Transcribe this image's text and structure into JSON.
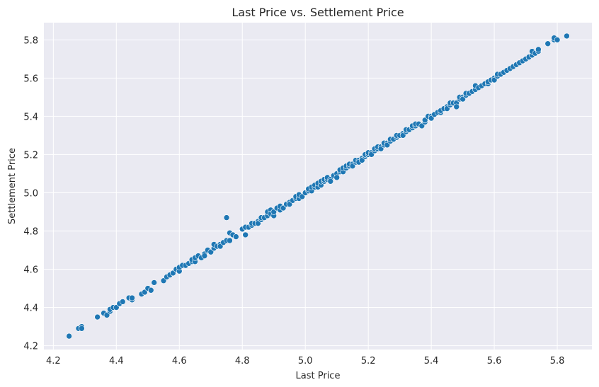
{
  "chart_data": {
    "type": "scatter",
    "title": "Last Price vs. Settlement Price",
    "xlabel": "Last Price",
    "ylabel": "Settlement Price",
    "xlim": [
      4.17,
      5.91
    ],
    "ylim": [
      4.18,
      5.89
    ],
    "x_ticks": [
      4.2,
      4.4,
      4.6,
      4.8,
      5.0,
      5.2,
      5.4,
      5.6,
      5.8
    ],
    "x_tick_labels": [
      "4.2",
      "4.4",
      "4.6",
      "4.8",
      "5.0",
      "5.2",
      "5.4",
      "5.6",
      "5.8"
    ],
    "y_ticks": [
      4.2,
      4.4,
      4.6,
      4.8,
      5.0,
      5.2,
      5.4,
      5.6,
      5.8
    ],
    "y_tick_labels": [
      "4.2",
      "4.4",
      "4.6",
      "4.8",
      "5.0",
      "5.2",
      "5.4",
      "5.6",
      "5.8"
    ],
    "grid": true,
    "background": "#eaeaf2",
    "marker_color": "#1f77b4",
    "points": [
      [
        4.25,
        4.25
      ],
      [
        4.28,
        4.29
      ],
      [
        4.29,
        4.3
      ],
      [
        4.29,
        4.29
      ],
      [
        4.34,
        4.35
      ],
      [
        4.36,
        4.37
      ],
      [
        4.37,
        4.36
      ],
      [
        4.38,
        4.38
      ],
      [
        4.38,
        4.39
      ],
      [
        4.39,
        4.4
      ],
      [
        4.4,
        4.4
      ],
      [
        4.41,
        4.42
      ],
      [
        4.42,
        4.43
      ],
      [
        4.44,
        4.45
      ],
      [
        4.45,
        4.44
      ],
      [
        4.45,
        4.45
      ],
      [
        4.48,
        4.47
      ],
      [
        4.49,
        4.48
      ],
      [
        4.5,
        4.5
      ],
      [
        4.51,
        4.49
      ],
      [
        4.52,
        4.53
      ],
      [
        4.55,
        4.54
      ],
      [
        4.56,
        4.56
      ],
      [
        4.57,
        4.57
      ],
      [
        4.58,
        4.58
      ],
      [
        4.59,
        4.6
      ],
      [
        4.6,
        4.59
      ],
      [
        4.6,
        4.61
      ],
      [
        4.61,
        4.62
      ],
      [
        4.62,
        4.62
      ],
      [
        4.63,
        4.63
      ],
      [
        4.64,
        4.64
      ],
      [
        4.64,
        4.65
      ],
      [
        4.65,
        4.64
      ],
      [
        4.65,
        4.66
      ],
      [
        4.66,
        4.67
      ],
      [
        4.67,
        4.66
      ],
      [
        4.68,
        4.68
      ],
      [
        4.68,
        4.67
      ],
      [
        4.69,
        4.7
      ],
      [
        4.7,
        4.69
      ],
      [
        4.71,
        4.71
      ],
      [
        4.71,
        4.73
      ],
      [
        4.72,
        4.72
      ],
      [
        4.73,
        4.73
      ],
      [
        4.73,
        4.72
      ],
      [
        4.74,
        4.74
      ],
      [
        4.75,
        4.75
      ],
      [
        4.75,
        4.87
      ],
      [
        4.76,
        4.79
      ],
      [
        4.76,
        4.75
      ],
      [
        4.77,
        4.78
      ],
      [
        4.78,
        4.77
      ],
      [
        4.8,
        4.81
      ],
      [
        4.81,
        4.78
      ],
      [
        4.81,
        4.82
      ],
      [
        4.82,
        4.82
      ],
      [
        4.83,
        4.83
      ],
      [
        4.83,
        4.84
      ],
      [
        4.84,
        4.84
      ],
      [
        4.85,
        4.85
      ],
      [
        4.85,
        4.84
      ],
      [
        4.86,
        4.86
      ],
      [
        4.86,
        4.87
      ],
      [
        4.87,
        4.87
      ],
      [
        4.88,
        4.88
      ],
      [
        4.88,
        4.9
      ],
      [
        4.89,
        4.91
      ],
      [
        4.89,
        4.89
      ],
      [
        4.9,
        4.88
      ],
      [
        4.9,
        4.9
      ],
      [
        4.91,
        4.92
      ],
      [
        4.92,
        4.91
      ],
      [
        4.92,
        4.93
      ],
      [
        4.93,
        4.92
      ],
      [
        4.94,
        4.94
      ],
      [
        4.95,
        4.95
      ],
      [
        4.95,
        4.94
      ],
      [
        4.96,
        4.96
      ],
      [
        4.97,
        4.97
      ],
      [
        4.97,
        4.98
      ],
      [
        4.98,
        4.97
      ],
      [
        4.98,
        4.99
      ],
      [
        4.99,
        4.98
      ],
      [
        5.0,
        5.0
      ],
      [
        5.01,
        5.01
      ],
      [
        5.01,
        5.02
      ],
      [
        5.02,
        5.01
      ],
      [
        5.02,
        5.03
      ],
      [
        5.03,
        5.03
      ],
      [
        5.03,
        5.04
      ],
      [
        5.04,
        5.03
      ],
      [
        5.04,
        5.05
      ],
      [
        5.05,
        5.04
      ],
      [
        5.05,
        5.06
      ],
      [
        5.06,
        5.06
      ],
      [
        5.06,
        5.07
      ],
      [
        5.07,
        5.07
      ],
      [
        5.07,
        5.08
      ],
      [
        5.08,
        5.07
      ],
      [
        5.08,
        5.06
      ],
      [
        5.09,
        5.09
      ],
      [
        5.1,
        5.1
      ],
      [
        5.1,
        5.08
      ],
      [
        5.11,
        5.11
      ],
      [
        5.11,
        5.12
      ],
      [
        5.12,
        5.11
      ],
      [
        5.12,
        5.13
      ],
      [
        5.13,
        5.13
      ],
      [
        5.13,
        5.14
      ],
      [
        5.14,
        5.14
      ],
      [
        5.14,
        5.15
      ],
      [
        5.15,
        5.15
      ],
      [
        5.15,
        5.14
      ],
      [
        5.16,
        5.16
      ],
      [
        5.16,
        5.17
      ],
      [
        5.17,
        5.17
      ],
      [
        5.17,
        5.16
      ],
      [
        5.18,
        5.18
      ],
      [
        5.18,
        5.17
      ],
      [
        5.19,
        5.19
      ],
      [
        5.19,
        5.2
      ],
      [
        5.2,
        5.2
      ],
      [
        5.2,
        5.21
      ],
      [
        5.21,
        5.21
      ],
      [
        5.21,
        5.2
      ],
      [
        5.22,
        5.22
      ],
      [
        5.22,
        5.23
      ],
      [
        5.23,
        5.23
      ],
      [
        5.23,
        5.24
      ],
      [
        5.24,
        5.24
      ],
      [
        5.24,
        5.23
      ],
      [
        5.25,
        5.25
      ],
      [
        5.25,
        5.26
      ],
      [
        5.26,
        5.26
      ],
      [
        5.26,
        5.25
      ],
      [
        5.27,
        5.27
      ],
      [
        5.27,
        5.28
      ],
      [
        5.28,
        5.28
      ],
      [
        5.29,
        5.29
      ],
      [
        5.29,
        5.3
      ],
      [
        5.3,
        5.3
      ],
      [
        5.31,
        5.31
      ],
      [
        5.31,
        5.3
      ],
      [
        5.32,
        5.32
      ],
      [
        5.32,
        5.33
      ],
      [
        5.33,
        5.33
      ],
      [
        5.34,
        5.34
      ],
      [
        5.34,
        5.35
      ],
      [
        5.35,
        5.35
      ],
      [
        5.35,
        5.36
      ],
      [
        5.36,
        5.36
      ],
      [
        5.37,
        5.35
      ],
      [
        5.38,
        5.37
      ],
      [
        5.38,
        5.38
      ],
      [
        5.39,
        5.4
      ],
      [
        5.4,
        5.4
      ],
      [
        5.4,
        5.39
      ],
      [
        5.41,
        5.41
      ],
      [
        5.42,
        5.42
      ],
      [
        5.43,
        5.42
      ],
      [
        5.43,
        5.43
      ],
      [
        5.44,
        5.44
      ],
      [
        5.45,
        5.45
      ],
      [
        5.45,
        5.44
      ],
      [
        5.46,
        5.46
      ],
      [
        5.46,
        5.47
      ],
      [
        5.47,
        5.47
      ],
      [
        5.48,
        5.47
      ],
      [
        5.48,
        5.45
      ],
      [
        5.49,
        5.49
      ],
      [
        5.49,
        5.5
      ],
      [
        5.5,
        5.5
      ],
      [
        5.5,
        5.49
      ],
      [
        5.51,
        5.51
      ],
      [
        5.51,
        5.52
      ],
      [
        5.52,
        5.52
      ],
      [
        5.53,
        5.53
      ],
      [
        5.54,
        5.54
      ],
      [
        5.54,
        5.56
      ],
      [
        5.55,
        5.55
      ],
      [
        5.56,
        5.56
      ],
      [
        5.57,
        5.57
      ],
      [
        5.58,
        5.57
      ],
      [
        5.58,
        5.58
      ],
      [
        5.59,
        5.59
      ],
      [
        5.6,
        5.6
      ],
      [
        5.6,
        5.59
      ],
      [
        5.61,
        5.61
      ],
      [
        5.61,
        5.62
      ],
      [
        5.62,
        5.62
      ],
      [
        5.63,
        5.63
      ],
      [
        5.64,
        5.64
      ],
      [
        5.65,
        5.65
      ],
      [
        5.66,
        5.66
      ],
      [
        5.67,
        5.67
      ],
      [
        5.68,
        5.68
      ],
      [
        5.69,
        5.69
      ],
      [
        5.7,
        5.7
      ],
      [
        5.71,
        5.71
      ],
      [
        5.72,
        5.72
      ],
      [
        5.72,
        5.74
      ],
      [
        5.73,
        5.73
      ],
      [
        5.74,
        5.74
      ],
      [
        5.74,
        5.75
      ],
      [
        5.77,
        5.78
      ],
      [
        5.79,
        5.8
      ],
      [
        5.79,
        5.81
      ],
      [
        5.8,
        5.8
      ],
      [
        5.83,
        5.82
      ]
    ]
  }
}
